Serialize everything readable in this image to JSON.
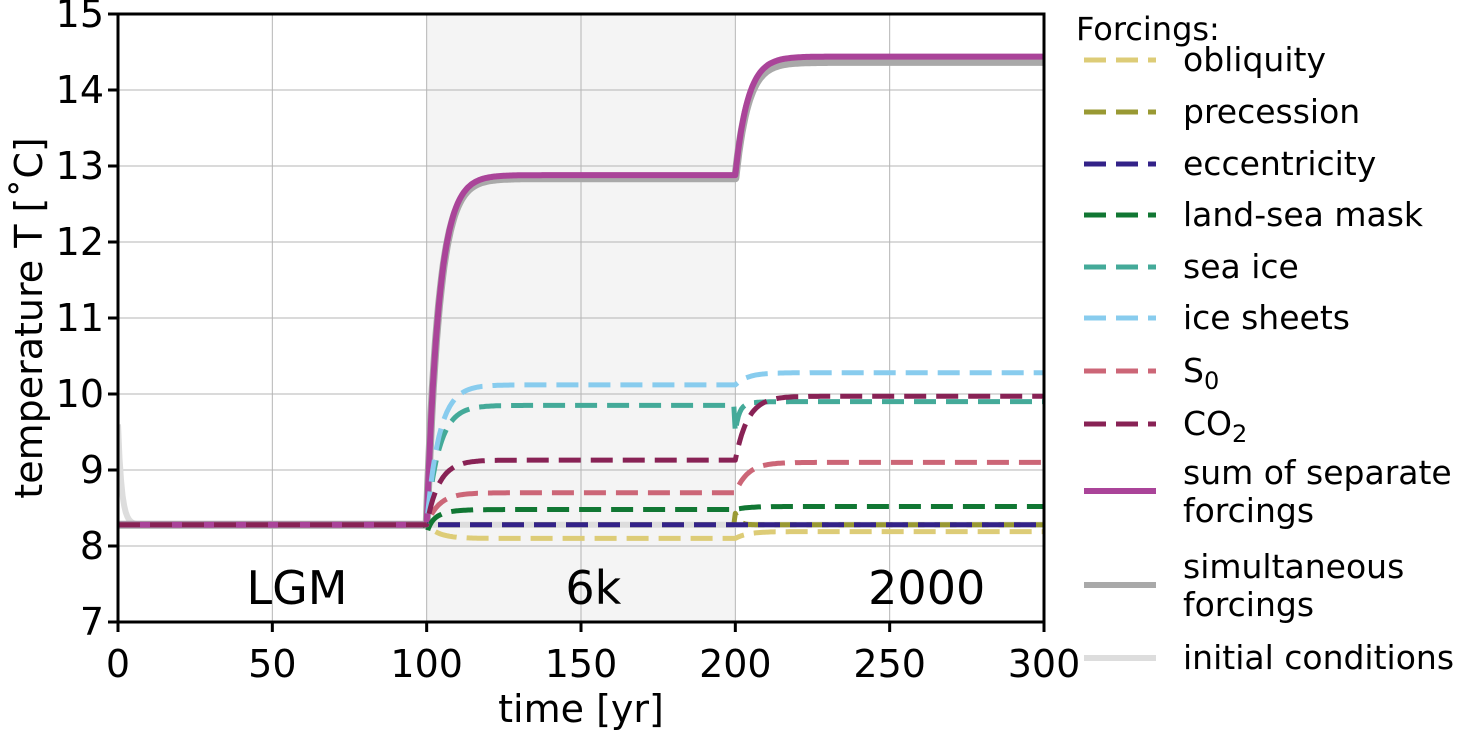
{
  "chart_data": {
    "type": "line",
    "xlabel": "time [yr]",
    "ylabel": "temperature T [˚C]",
    "xlim": [
      0,
      300
    ],
    "ylim": [
      7,
      15
    ],
    "xticks": [
      0,
      50,
      100,
      150,
      200,
      250,
      300
    ],
    "yticks": [
      7,
      8,
      9,
      10,
      11,
      12,
      13,
      14,
      15
    ],
    "grid": true,
    "shaded_region": {
      "x": [
        100,
        200
      ],
      "color": "#f4f4f4"
    },
    "period_labels": [
      {
        "text": "LGM",
        "x": 58,
        "y": 7.45
      },
      {
        "text": "6k",
        "x": 154,
        "y": 7.45
      },
      {
        "text": "2000",
        "x": 262,
        "y": 7.45
      }
    ],
    "legend": {
      "title": "Forcings:",
      "placement": "outside-right"
    },
    "series": [
      {
        "name": "obliquity",
        "name_sub": "",
        "style": "dashed",
        "color": "#ddcc77",
        "levels": [
          8.28,
          8.1,
          8.19
        ],
        "overshoot": [
          0,
          0
        ]
      },
      {
        "name": "precession",
        "name_sub": "",
        "style": "dashed",
        "color": "#999933",
        "levels": [
          8.28,
          8.28,
          8.28
        ],
        "overshoot": [
          0,
          0.15
        ]
      },
      {
        "name": "eccentricity",
        "name_sub": "",
        "style": "dashed",
        "color": "#332288",
        "levels": [
          8.28,
          8.28,
          8.28
        ],
        "overshoot": [
          0,
          0
        ]
      },
      {
        "name": "land-sea mask",
        "name_sub": "",
        "style": "dashed",
        "color": "#117733",
        "levels": [
          8.28,
          8.48,
          8.52
        ],
        "overshoot": [
          -0.12,
          0
        ]
      },
      {
        "name": "sea ice",
        "name_sub": "",
        "style": "dashed",
        "color": "#44aa99",
        "levels": [
          8.28,
          9.85,
          9.9
        ],
        "overshoot": [
          0,
          -0.35
        ]
      },
      {
        "name": "ice sheets",
        "name_sub": "",
        "style": "dashed",
        "color": "#88ccee",
        "levels": [
          8.28,
          10.12,
          10.28
        ],
        "overshoot": [
          0,
          0
        ]
      },
      {
        "name": "S",
        "name_sub": "0",
        "style": "dashed",
        "color": "#cc6677",
        "levels": [
          8.28,
          8.7,
          9.1
        ],
        "overshoot": [
          0,
          0
        ]
      },
      {
        "name": "CO",
        "name_sub": "2",
        "style": "dashed",
        "color": "#882255",
        "levels": [
          8.28,
          9.13,
          9.97
        ],
        "overshoot": [
          0,
          0
        ]
      },
      {
        "name": "sum of separate forcings",
        "name_sub": "",
        "style": "solid",
        "color": "#aa4499",
        "levels": [
          8.28,
          12.88,
          14.44
        ],
        "overshoot": [
          0,
          0
        ]
      },
      {
        "name": "simultaneous forcings",
        "name_sub": "",
        "style": "solid",
        "color": "#a9a9a9",
        "levels": [
          8.28,
          12.84,
          14.37
        ],
        "overshoot": [
          0,
          0
        ]
      },
      {
        "name": "initial conditions",
        "name_sub": "",
        "style": "solid",
        "color": "#dddddd",
        "levels": [
          8.28,
          8.28,
          8.28
        ],
        "overshoot": [
          0,
          0
        ],
        "start": 9.6
      }
    ]
  }
}
